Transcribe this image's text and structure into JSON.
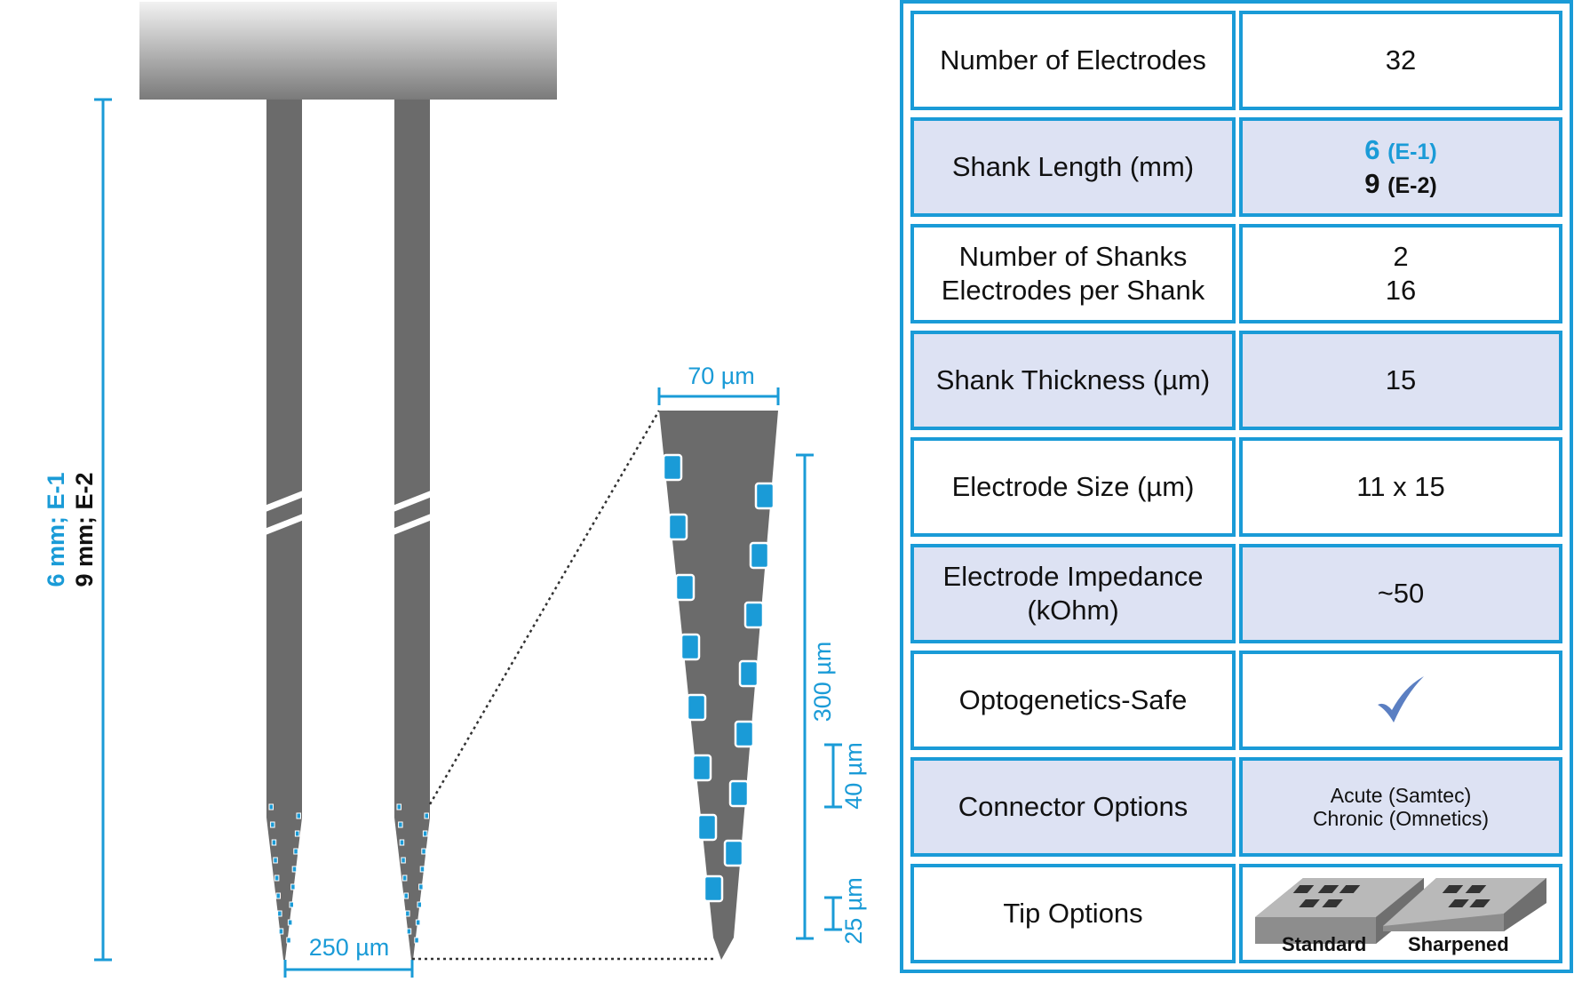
{
  "colors": {
    "accent": "#1a9bd7",
    "shank": "#6b6b6b",
    "row_shade": "#dde2f3",
    "checkmark": "#5b7fc2"
  },
  "diagram": {
    "length_label_e1": "6 mm; E-1",
    "length_label_e2": "9 mm; E-2",
    "shank_spacing": "250 µm",
    "tip_width": "70 µm",
    "site_span": "300 µm",
    "site_pitch": "40 µm",
    "tip_offset": "25 µm"
  },
  "specs": {
    "electrodes": {
      "label": "Number of Electrodes",
      "value": "32"
    },
    "shank_length": {
      "label": "Shank Length (mm)",
      "e1_value": "6",
      "e1_tag": "(E-1)",
      "e2_value": "9",
      "e2_tag": "(E-2)"
    },
    "shanks": {
      "label_1": "Number of Shanks",
      "label_2": "Electrodes per Shank",
      "value_1": "2",
      "value_2": "16"
    },
    "thickness": {
      "label": "Shank Thickness (µm)",
      "value": "15"
    },
    "electrode_size": {
      "label": "Electrode Size (µm)",
      "value": "11 x 15"
    },
    "impedance": {
      "label_1": "Electrode Impedance",
      "label_2": "(kOhm)",
      "value": "~50"
    },
    "optogenetics": {
      "label": "Optogenetics-Safe",
      "icon": "checkmark-icon"
    },
    "connector": {
      "label": "Connector Options",
      "option_1": "Acute (Samtec)",
      "option_2": "Chronic (Omnetics)"
    },
    "tip": {
      "label": "Tip Options",
      "option_1": "Standard",
      "option_2": "Sharpened"
    }
  }
}
